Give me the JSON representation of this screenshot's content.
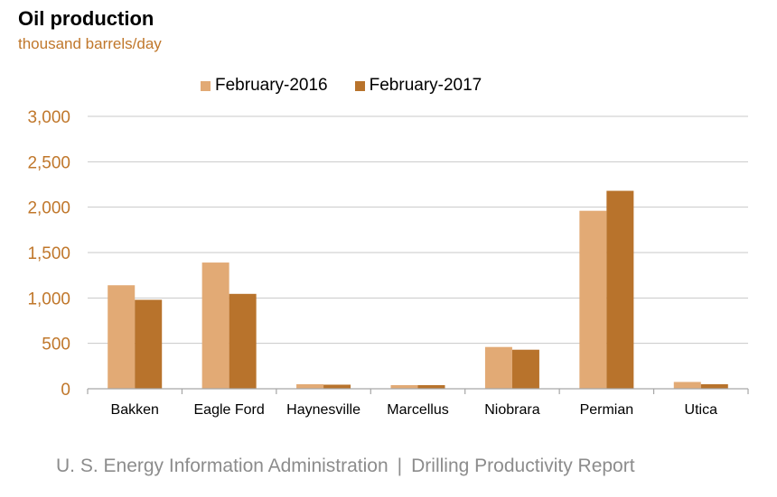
{
  "title": "Oil production",
  "subtitle": "thousand barrels/day",
  "footer": {
    "agency": "U. S. Energy Information Administration",
    "separator": "|",
    "report": "Drilling Productivity Report"
  },
  "colors": {
    "series_2016": "#e2aa75",
    "series_2017": "#b8732c",
    "axis_text": "#c0772b",
    "gridline": "#c8c8c8"
  },
  "chart_data": {
    "type": "bar",
    "categories": [
      "Bakken",
      "Eagle Ford",
      "Haynesville",
      "Marcellus",
      "Niobrara",
      "Permian",
      "Utica"
    ],
    "series": [
      {
        "name": "February-2016",
        "values": [
          1140,
          1390,
          50,
          40,
          460,
          1960,
          75
        ]
      },
      {
        "name": "February-2017",
        "values": [
          980,
          1045,
          45,
          40,
          430,
          2180,
          50
        ]
      }
    ],
    "ylim": [
      0,
      3000
    ],
    "yticks": [
      0,
      500,
      1000,
      1500,
      2000,
      2500,
      3000
    ],
    "ytick_labels": [
      "0",
      "500",
      "1,000",
      "1,500",
      "2,000",
      "2,500",
      "3,000"
    ],
    "grid": true,
    "legend_position": "top"
  }
}
